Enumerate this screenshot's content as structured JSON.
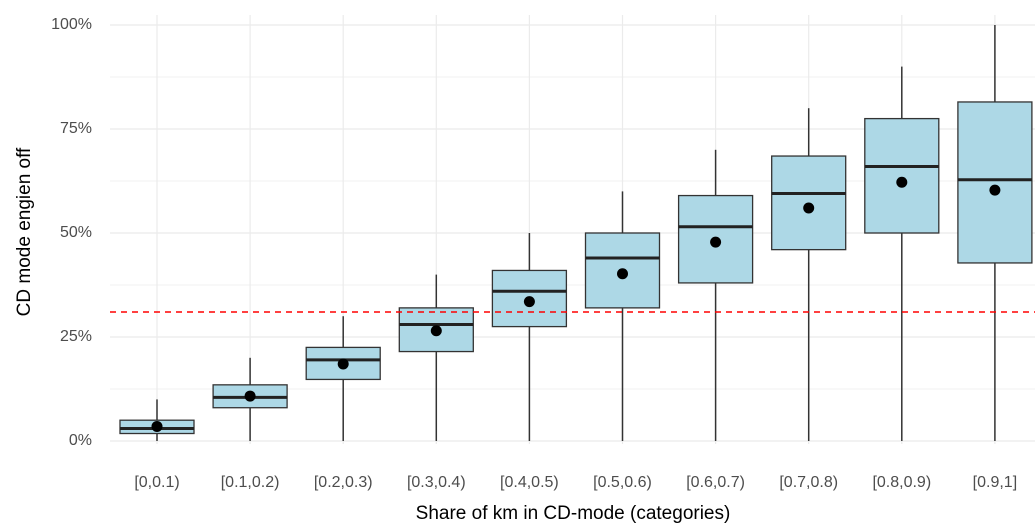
{
  "chart_data": {
    "type": "boxplot",
    "xlabel": "Share of km in CD-mode (categories)",
    "ylabel": "CD mode engien off",
    "ylim": [
      0,
      1
    ],
    "yticks": [
      {
        "value": 0,
        "label": "0%"
      },
      {
        "value": 0.25,
        "label": "25%"
      },
      {
        "value": 0.5,
        "label": "50%"
      },
      {
        "value": 0.75,
        "label": "75%"
      },
      {
        "value": 1.0,
        "label": "100%"
      }
    ],
    "categories": [
      "[0,0.1)",
      "[0.1,0.2)",
      "[0.2,0.3)",
      "[0.3,0.4)",
      "[0.4,0.5)",
      "[0.5,0.6)",
      "[0.6,0.7)",
      "[0.7,0.8)",
      "[0.8,0.9)",
      "[0.9,1]"
    ],
    "boxes": [
      {
        "min": 0.0,
        "q1": 0.018,
        "median": 0.03,
        "q3": 0.05,
        "max": 0.1,
        "mean": 0.035
      },
      {
        "min": 0.0,
        "q1": 0.08,
        "median": 0.105,
        "q3": 0.135,
        "max": 0.2,
        "mean": 0.108
      },
      {
        "min": 0.0,
        "q1": 0.148,
        "median": 0.195,
        "q3": 0.225,
        "max": 0.3,
        "mean": 0.185
      },
      {
        "min": 0.0,
        "q1": 0.215,
        "median": 0.28,
        "q3": 0.32,
        "max": 0.4,
        "mean": 0.265
      },
      {
        "min": 0.0,
        "q1": 0.275,
        "median": 0.36,
        "q3": 0.41,
        "max": 0.5,
        "mean": 0.335
      },
      {
        "min": 0.0,
        "q1": 0.32,
        "median": 0.44,
        "q3": 0.5,
        "max": 0.6,
        "mean": 0.402
      },
      {
        "min": 0.0,
        "q1": 0.38,
        "median": 0.515,
        "q3": 0.59,
        "max": 0.7,
        "mean": 0.478
      },
      {
        "min": 0.0,
        "q1": 0.46,
        "median": 0.595,
        "q3": 0.685,
        "max": 0.8,
        "mean": 0.56
      },
      {
        "min": 0.0,
        "q1": 0.5,
        "median": 0.66,
        "q3": 0.775,
        "max": 0.9,
        "mean": 0.622
      },
      {
        "min": 0.0,
        "q1": 0.428,
        "median": 0.628,
        "q3": 0.815,
        "max": 1.0,
        "mean": 0.603
      }
    ],
    "reference_line": {
      "y": 0.31,
      "style": "dashed",
      "color": "#ff0000"
    },
    "box_fill": "#add8e6",
    "grid": true,
    "legend": "none"
  }
}
